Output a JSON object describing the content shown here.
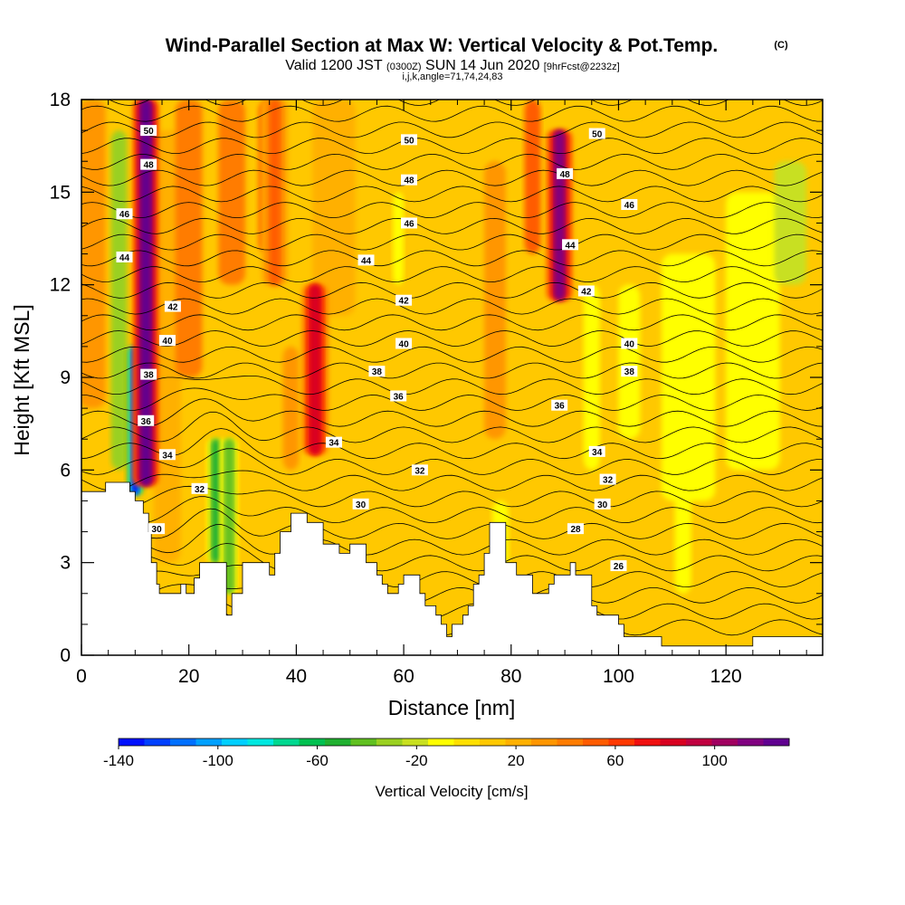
{
  "title": {
    "main": "Wind-Parallel Section at Max W: Vertical Velocity & Pot.Temp.",
    "copyright": "(C)",
    "valid_prefix": "Valid 1200 JST",
    "valid_utc": "(0300Z)",
    "valid_date": "SUN 14 Jun 2020",
    "forecast": "[9hrFcst@2232z]",
    "indices": "i,j,k,angle=71,74,24,83"
  },
  "chart_data": {
    "type": "heatmap",
    "xlabel": "Distance [nm]",
    "ylabel": "Height [Kft MSL]",
    "xlim": [
      0,
      138
    ],
    "ylim": [
      0,
      18
    ],
    "x_ticks": [
      0,
      20,
      40,
      60,
      80,
      100,
      120
    ],
    "y_ticks": [
      0,
      3,
      6,
      9,
      12,
      15,
      18
    ],
    "colorbar": {
      "label": "Vertical Velocity [cm/s]",
      "tick_values": [
        -140,
        -100,
        -60,
        -20,
        20,
        60,
        100
      ],
      "range": [
        -140,
        130
      ],
      "colors": [
        "#0010ff",
        "#0040ff",
        "#0070ff",
        "#00a0ff",
        "#00cfff",
        "#00e8e0",
        "#00d890",
        "#00c050",
        "#20b030",
        "#60c020",
        "#9ad020",
        "#c8e020",
        "#ffff00",
        "#ffe000",
        "#ffc800",
        "#ffb000",
        "#ff9600",
        "#ff7c00",
        "#ff5c00",
        "#ff3800",
        "#f01010",
        "#d80020",
        "#c00040",
        "#a00060",
        "#800080",
        "#600090"
      ]
    },
    "theta_contour_labels": [
      26,
      28,
      30,
      32,
      34,
      36,
      38,
      40,
      42,
      44,
      46,
      48,
      50
    ],
    "updraft_maxima": [
      {
        "x": 12,
        "y_min": 5.5,
        "y_max": 18,
        "w": 125
      },
      {
        "x": 43.5,
        "y_min": 6.5,
        "y_max": 12,
        "w": 85
      },
      {
        "x": 89,
        "y_min": 11.5,
        "y_max": 17,
        "w": 110
      },
      {
        "x": 36,
        "y_min": 12,
        "y_max": 18,
        "w": 50
      }
    ],
    "downdraft_minima": [
      {
        "x": 10,
        "y_min": 5.2,
        "y_max": 10,
        "w": -135
      },
      {
        "x": 25,
        "y_min": 3,
        "y_max": 7,
        "w": -50
      },
      {
        "x": 27.5,
        "y_min": 2,
        "y_max": 7,
        "w": -45
      }
    ],
    "terrain": [
      [
        0,
        5.3
      ],
      [
        4.5,
        5.3
      ],
      [
        4.5,
        5.6
      ],
      [
        9,
        5.6
      ],
      [
        9,
        5.3
      ],
      [
        10,
        5.3
      ],
      [
        10,
        5
      ],
      [
        11.5,
        5
      ],
      [
        11.5,
        4.6
      ],
      [
        12.5,
        4.6
      ],
      [
        12.5,
        4
      ],
      [
        13,
        4
      ],
      [
        13,
        3
      ],
      [
        14,
        3
      ],
      [
        14,
        2.3
      ],
      [
        14.5,
        2.3
      ],
      [
        14.5,
        2
      ],
      [
        18.5,
        2
      ],
      [
        18.5,
        2.3
      ],
      [
        19.5,
        2.3
      ],
      [
        19.5,
        2
      ],
      [
        21,
        2
      ],
      [
        21,
        2.5
      ],
      [
        22,
        2.5
      ],
      [
        22,
        3
      ],
      [
        27,
        3
      ],
      [
        27,
        1.3
      ],
      [
        28,
        1.3
      ],
      [
        28,
        2
      ],
      [
        30,
        2
      ],
      [
        30,
        3
      ],
      [
        35,
        3
      ],
      [
        35,
        2.6
      ],
      [
        36,
        2.6
      ],
      [
        36,
        3.3
      ],
      [
        37,
        3.3
      ],
      [
        37,
        4
      ],
      [
        39,
        4
      ],
      [
        39,
        4.6
      ],
      [
        42,
        4.6
      ],
      [
        42,
        4.3
      ],
      [
        45,
        4.3
      ],
      [
        45,
        3.6
      ],
      [
        48,
        3.6
      ],
      [
        48,
        3.3
      ],
      [
        50,
        3.3
      ],
      [
        50,
        3.6
      ],
      [
        53,
        3.6
      ],
      [
        53,
        3
      ],
      [
        55,
        3
      ],
      [
        55,
        2.6
      ],
      [
        56,
        2.6
      ],
      [
        56,
        2.3
      ],
      [
        57,
        2.3
      ],
      [
        57,
        2
      ],
      [
        59,
        2
      ],
      [
        59,
        2.3
      ],
      [
        60,
        2.3
      ],
      [
        60,
        2.6
      ],
      [
        63,
        2.6
      ],
      [
        63,
        2
      ],
      [
        64,
        2
      ],
      [
        64,
        1.6
      ],
      [
        66,
        1.6
      ],
      [
        66,
        1.3
      ],
      [
        67,
        1.3
      ],
      [
        67,
        1
      ],
      [
        68,
        1
      ],
      [
        68,
        0.6
      ],
      [
        69,
        0.6
      ],
      [
        69,
        1
      ],
      [
        71,
        1
      ],
      [
        71,
        1.3
      ],
      [
        72,
        1.3
      ],
      [
        72,
        1.6
      ],
      [
        73,
        1.6
      ],
      [
        73,
        2.3
      ],
      [
        74,
        2.3
      ],
      [
        74,
        2.6
      ],
      [
        75,
        2.6
      ],
      [
        75,
        3.3
      ],
      [
        76,
        3.3
      ],
      [
        76,
        4.3
      ],
      [
        79,
        4.3
      ],
      [
        79,
        3
      ],
      [
        81,
        3
      ],
      [
        81,
        2.6
      ],
      [
        84,
        2.6
      ],
      [
        84,
        2
      ],
      [
        87,
        2
      ],
      [
        87,
        2.3
      ],
      [
        88,
        2.3
      ],
      [
        88,
        2.6
      ],
      [
        91,
        2.6
      ],
      [
        91,
        3
      ],
      [
        92,
        3
      ],
      [
        92,
        2.6
      ],
      [
        95,
        2.6
      ],
      [
        95,
        1.6
      ],
      [
        96,
        1.6
      ],
      [
        96,
        1.3
      ],
      [
        100,
        1.3
      ],
      [
        100,
        1
      ],
      [
        101,
        1
      ],
      [
        101,
        0.6
      ],
      [
        104,
        0.6
      ],
      [
        104,
        0.6
      ],
      [
        108,
        0.6
      ],
      [
        108,
        0.3
      ],
      [
        125,
        0.3
      ],
      [
        125,
        0.6
      ],
      [
        138,
        0.6
      ]
    ]
  }
}
